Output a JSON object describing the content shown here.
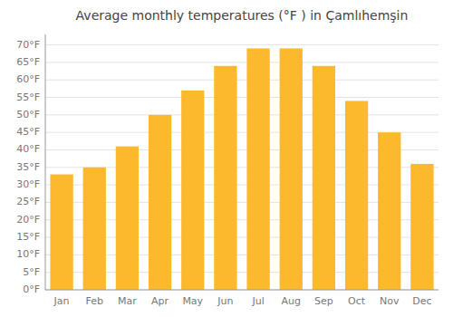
{
  "chart_data": {
    "type": "bar",
    "title": "Average monthly temperatures (°F ) in Çamlıhemşin",
    "categories": [
      "Jan",
      "Feb",
      "Mar",
      "Apr",
      "May",
      "Jun",
      "Jul",
      "Aug",
      "Sep",
      "Oct",
      "Nov",
      "Dec"
    ],
    "values": [
      33,
      35,
      41,
      50,
      57,
      64,
      69,
      69,
      64,
      54,
      45,
      36
    ],
    "color": "#FDB92E",
    "ylim": [
      0,
      73
    ],
    "yticks": [
      {
        "value": 0,
        "label": "0°F"
      },
      {
        "value": 5,
        "label": "5°F"
      },
      {
        "value": 10,
        "label": "10°F"
      },
      {
        "value": 15,
        "label": "15°F"
      },
      {
        "value": 20,
        "label": "20°F"
      },
      {
        "value": 25,
        "label": "25°F"
      },
      {
        "value": 30,
        "label": "30°F"
      },
      {
        "value": 35,
        "label": "35°F"
      },
      {
        "value": 40,
        "label": "40°F"
      },
      {
        "value": 45,
        "label": "45°F"
      },
      {
        "value": 50,
        "label": "50°F"
      },
      {
        "value": 55,
        "label": "55°F"
      },
      {
        "value": 60,
        "label": "60°F"
      },
      {
        "value": 65,
        "label": "65°F"
      },
      {
        "value": 70,
        "label": "70°F"
      }
    ],
    "grid": true
  }
}
